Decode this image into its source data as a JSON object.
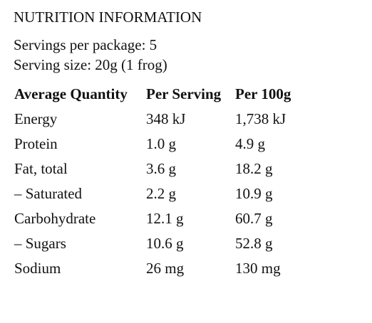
{
  "header": {
    "title": "NUTRITION INFORMATION",
    "servings_per_package": "Servings per package: 5",
    "serving_size": "Serving size: 20g (1 frog)"
  },
  "table": {
    "columns": [
      "Average Quantity",
      "Per Serving",
      "Per 100g"
    ],
    "rows": [
      [
        "Energy",
        "348 kJ",
        "1,738 kJ"
      ],
      [
        "Protein",
        "1.0 g",
        "4.9 g"
      ],
      [
        "Fat, total",
        "3.6 g",
        "18.2 g"
      ],
      [
        "– Saturated",
        "2.2 g",
        "10.9 g"
      ],
      [
        "Carbohydrate",
        "12.1 g",
        "60.7 g"
      ],
      [
        "– Sugars",
        "10.6 g",
        "52.8 g"
      ],
      [
        "Sodium",
        "26 mg",
        "130 mg"
      ]
    ]
  }
}
